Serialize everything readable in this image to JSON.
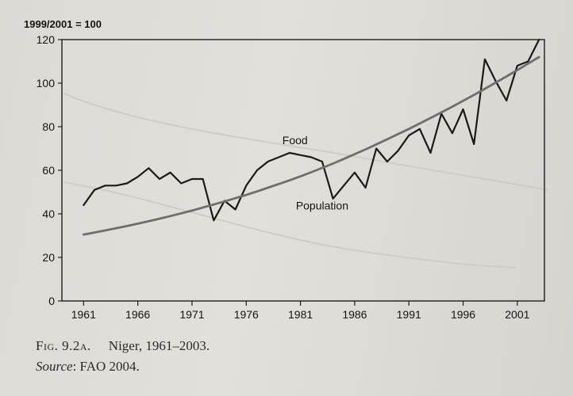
{
  "chart_data": {
    "type": "line",
    "ylabel": "1999/2001 = 100",
    "ylim": [
      0,
      120
    ],
    "xlim": [
      1959,
      2003.5
    ],
    "yticks": [
      0,
      20,
      40,
      60,
      80,
      100,
      120
    ],
    "xticks": [
      1961,
      1966,
      1971,
      1976,
      1981,
      1986,
      1991,
      1996,
      2001
    ],
    "x": [
      1961,
      1962,
      1963,
      1964,
      1965,
      1966,
      1967,
      1968,
      1969,
      1970,
      1971,
      1972,
      1973,
      1974,
      1975,
      1976,
      1977,
      1978,
      1979,
      1980,
      1981,
      1982,
      1983,
      1984,
      1985,
      1986,
      1987,
      1988,
      1989,
      1990,
      1991,
      1992,
      1993,
      1994,
      1995,
      1996,
      1997,
      1998,
      1999,
      2000,
      2001,
      2002,
      2003
    ],
    "series": [
      {
        "name": "Food",
        "values": [
          44,
          51,
          53,
          53,
          54,
          57,
          61,
          56,
          59,
          54,
          56,
          56,
          37,
          46,
          42,
          53,
          60,
          64,
          66,
          68,
          67,
          66,
          64,
          47,
          53,
          59,
          52,
          70,
          64,
          69,
          76,
          79,
          68,
          86,
          77,
          88,
          72,
          111,
          101,
          92,
          108,
          110,
          120
        ]
      },
      {
        "name": "Population",
        "values": [
          30.5,
          31.4,
          32.4,
          33.4,
          34.4,
          35.5,
          36.6,
          37.8,
          39.0,
          40.2,
          41.5,
          42.9,
          44.3,
          45.7,
          47.2,
          48.7,
          50.3,
          52.0,
          53.7,
          55.4,
          57.2,
          59.1,
          61.1,
          63.1,
          65.2,
          67.4,
          69.6,
          71.9,
          74.2,
          76.6,
          79.0,
          81.5,
          84.0,
          86.6,
          89.2,
          91.9,
          94.6,
          97.4,
          100.2,
          103.1,
          106.0,
          109.0,
          112.0
        ]
      }
    ],
    "annotations": [
      {
        "text": "Food",
        "x": 1980.5,
        "y": 72
      },
      {
        "text": "Population",
        "x": 1983,
        "y": 42
      }
    ]
  },
  "caption": {
    "fig_label": "Fig. 9.2a.",
    "fig_title": "Niger, 1961–2003.",
    "source_label": "Source",
    "source_text": ": FAO 2004."
  }
}
